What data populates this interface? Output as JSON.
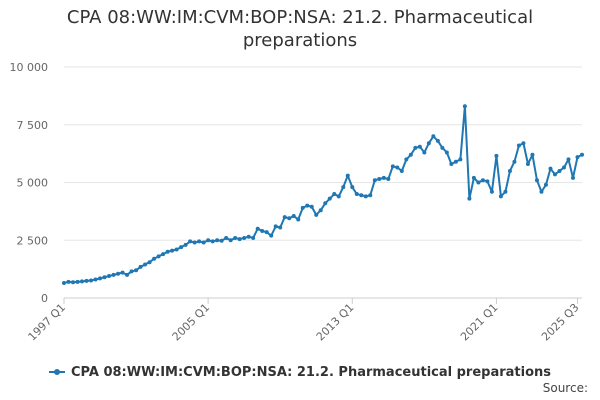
{
  "chart_data": {
    "type": "line",
    "title": "CPA 08:WW:IM:CVM:BOP:NSA: 21.2. Pharmaceutical preparations",
    "xlabel": "",
    "ylabel": "",
    "ylim": [
      0,
      10000
    ],
    "yticks": [
      "0",
      "2 500",
      "5 000",
      "7 500",
      "10 000"
    ],
    "ytick_values": [
      0,
      2500,
      5000,
      7500,
      10000
    ],
    "xticks": [
      "1997 Q1",
      "2005 Q1",
      "2013 Q1",
      "2021 Q1",
      "2025 Q3"
    ],
    "xtick_index": [
      0,
      32,
      64,
      96,
      114
    ],
    "grid": true,
    "legend_position": "bottom",
    "credit": "Source:",
    "color": "#1f77b4",
    "series": [
      {
        "name": "CPA 08:WW:IM:CVM:BOP:NSA: 21.2. Pharmaceutical preparations",
        "values": [
          650,
          700,
          680,
          700,
          720,
          740,
          760,
          800,
          850,
          900,
          950,
          1000,
          1050,
          1100,
          1000,
          1150,
          1200,
          1350,
          1450,
          1550,
          1700,
          1800,
          1900,
          2000,
          2050,
          2100,
          2200,
          2300,
          2450,
          2400,
          2450,
          2400,
          2500,
          2450,
          2500,
          2480,
          2600,
          2500,
          2600,
          2550,
          2600,
          2650,
          2600,
          3000,
          2900,
          2850,
          2700,
          3100,
          3050,
          3500,
          3450,
          3550,
          3400,
          3900,
          4000,
          3950,
          3600,
          3800,
          4100,
          4300,
          4500,
          4400,
          4800,
          5300,
          4800,
          4500,
          4450,
          4400,
          4450,
          5100,
          5150,
          5200,
          5150,
          5700,
          5650,
          5500,
          6000,
          6200,
          6500,
          6550,
          6300,
          6700,
          7000,
          6800,
          6500,
          6300,
          5800,
          5900,
          6000,
          8300,
          4300,
          5200,
          5000,
          5100,
          5050,
          4600,
          6150,
          4400,
          4600,
          5500,
          5900,
          6600,
          6700,
          5800,
          6200,
          5100,
          4600,
          4900,
          5600,
          5350,
          5500,
          5650,
          6000,
          5200,
          6100,
          6200
        ]
      }
    ]
  }
}
